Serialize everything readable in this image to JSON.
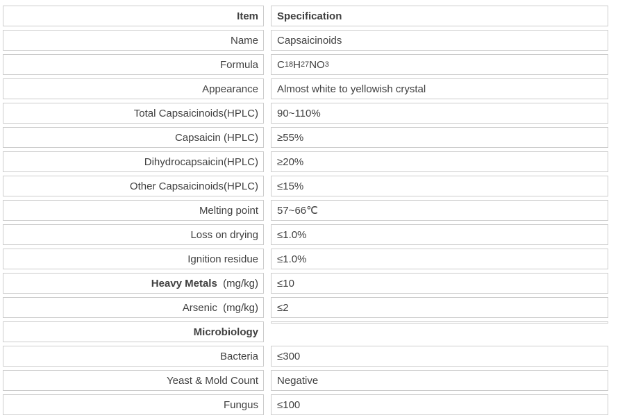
{
  "table": {
    "name": "capsaicinoids-specification-table",
    "border_color": "#cccccc",
    "text_color": "#404040",
    "columns": [
      "Item",
      "Specification"
    ],
    "rows": [
      {
        "header": true,
        "item": [
          {
            "text": "Item",
            "bold": true
          }
        ],
        "spec": [
          {
            "text": "Specification",
            "bold": true
          }
        ]
      },
      {
        "item": [
          {
            "text": "Name"
          }
        ],
        "spec": [
          {
            "text": "Capsaicinoids"
          }
        ]
      },
      {
        "item": [
          {
            "text": "Formula"
          }
        ],
        "spec": [
          {
            "text": "C"
          },
          {
            "text": "18",
            "sub": true
          },
          {
            "text": "H"
          },
          {
            "text": "27",
            "sub": true
          },
          {
            "text": "NO"
          },
          {
            "text": "3",
            "sub": true
          }
        ]
      },
      {
        "item": [
          {
            "text": "Appearance"
          }
        ],
        "spec": [
          {
            "text": "Almost white to yellowish crystal"
          }
        ]
      },
      {
        "item": [
          {
            "text": "Total Capsaicinoids(HPLC)"
          }
        ],
        "spec": [
          {
            "text": "90~110%"
          }
        ]
      },
      {
        "item": [
          {
            "text": "Capsaicin (HPLC)"
          }
        ],
        "spec": [
          {
            "text": "≥55%"
          }
        ]
      },
      {
        "item": [
          {
            "text": "Dihydrocapsaicin(HPLC)"
          }
        ],
        "spec": [
          {
            "text": "≥20%"
          }
        ]
      },
      {
        "item": [
          {
            "text": "Other Capsaicinoids(HPLC)"
          }
        ],
        "spec": [
          {
            "text": "≤15%"
          }
        ]
      },
      {
        "item": [
          {
            "text": "Melting point"
          }
        ],
        "spec": [
          {
            "text": "57~66℃"
          }
        ]
      },
      {
        "item": [
          {
            "text": "Loss on drying"
          }
        ],
        "spec": [
          {
            "text": "≤1.0%"
          }
        ]
      },
      {
        "item": [
          {
            "text": "Ignition residue"
          }
        ],
        "spec": [
          {
            "text": "≤1.0%"
          }
        ]
      },
      {
        "item": [
          {
            "text": "Heavy Metals",
            "bold": true
          },
          {
            "text": "  (mg/kg)"
          }
        ],
        "spec": [
          {
            "text": "≤10"
          }
        ]
      },
      {
        "item": [
          {
            "text": "Arsenic  (mg/kg)"
          }
        ],
        "spec": [
          {
            "text": "≤2"
          }
        ]
      },
      {
        "item": [
          {
            "text": "Microbiology",
            "bold": true
          }
        ],
        "spec": [],
        "spec_collapsed": true
      },
      {
        "item": [
          {
            "text": "Bacteria"
          }
        ],
        "spec": [
          {
            "text": "≤300"
          }
        ]
      },
      {
        "item": [
          {
            "text": "Yeast & Mold Count"
          }
        ],
        "spec": [
          {
            "text": "Negative"
          }
        ]
      },
      {
        "item": [
          {
            "text": "Fungus"
          }
        ],
        "spec": [
          {
            "text": "≤100"
          }
        ]
      }
    ]
  }
}
